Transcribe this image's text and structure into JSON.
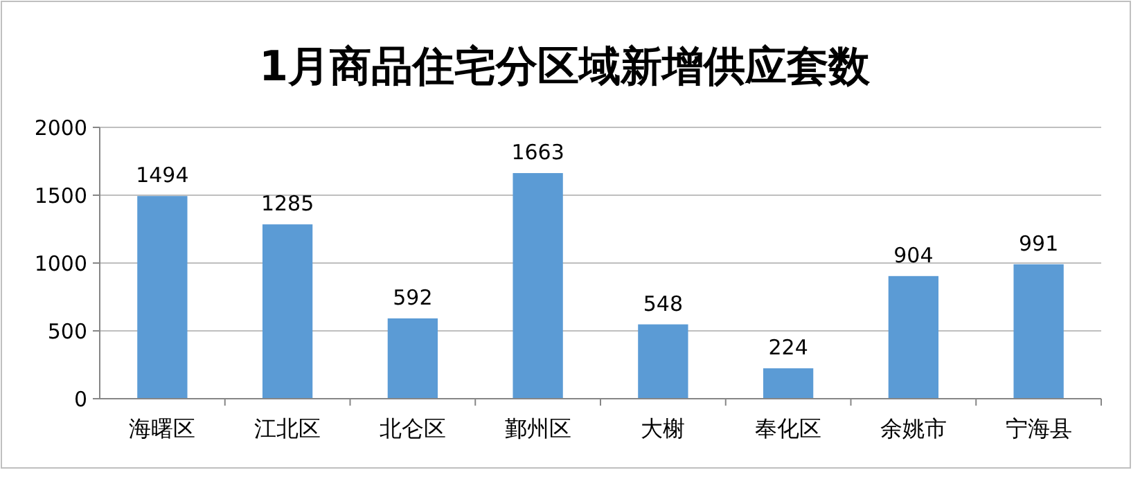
{
  "chart_data": {
    "type": "bar",
    "title": "1月商品住宅分区域新增供应套数",
    "categories": [
      "海曙区",
      "江北区",
      "北仑区",
      "鄞州区",
      "大榭",
      "奉化区",
      "余姚市",
      "宁海县"
    ],
    "values": [
      1494,
      1285,
      592,
      1663,
      548,
      224,
      904,
      991
    ],
    "color": "#5b9bd5",
    "ylim": [
      0,
      2000
    ],
    "yticks": [
      0,
      500,
      1000,
      1500,
      2000
    ],
    "grid": "y",
    "data_labels": true
  }
}
